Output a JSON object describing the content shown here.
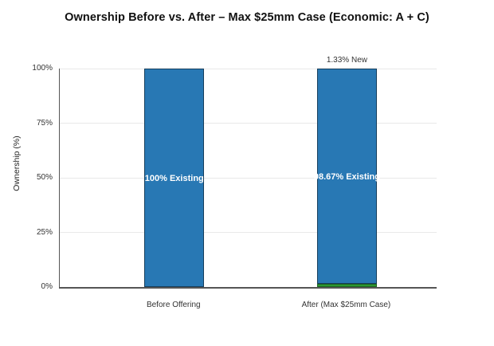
{
  "chart_data": {
    "type": "bar",
    "stacked": true,
    "title": "Ownership Before vs. After – Max $25mm Case (Economic: A + C)",
    "ylabel": "Ownership (%)",
    "xlabel": "",
    "ylim": [
      0,
      100
    ],
    "yticks": [
      0,
      25,
      50,
      75,
      100
    ],
    "ytick_labels": [
      "0%",
      "25%",
      "50%",
      "75%",
      "100%"
    ],
    "grid": true,
    "legend": "none",
    "categories": [
      "Before Offering",
      "After (Max $25mm Case)"
    ],
    "series": [
      {
        "name": "New",
        "color": "#2d9732",
        "border_color": "#1c6322",
        "values": [
          0,
          1.33
        ]
      },
      {
        "name": "Existing",
        "color": "#2878b4",
        "border_color": "#163e5c",
        "values": [
          100,
          98.67
        ]
      }
    ],
    "inside_label_series": "Existing",
    "labels_inside": [
      "100% Existing",
      "98.67% Existing"
    ],
    "labels_above": [
      "",
      "1.33% New"
    ],
    "colors": {
      "axis": "#555555",
      "grid": "#e9e9e9",
      "tick_text": "#333333",
      "category_text": "#333333",
      "inside_label_text": "#ffffff",
      "above_label_text": "#333333",
      "title_text": "#111111",
      "background": "#ffffff"
    }
  }
}
